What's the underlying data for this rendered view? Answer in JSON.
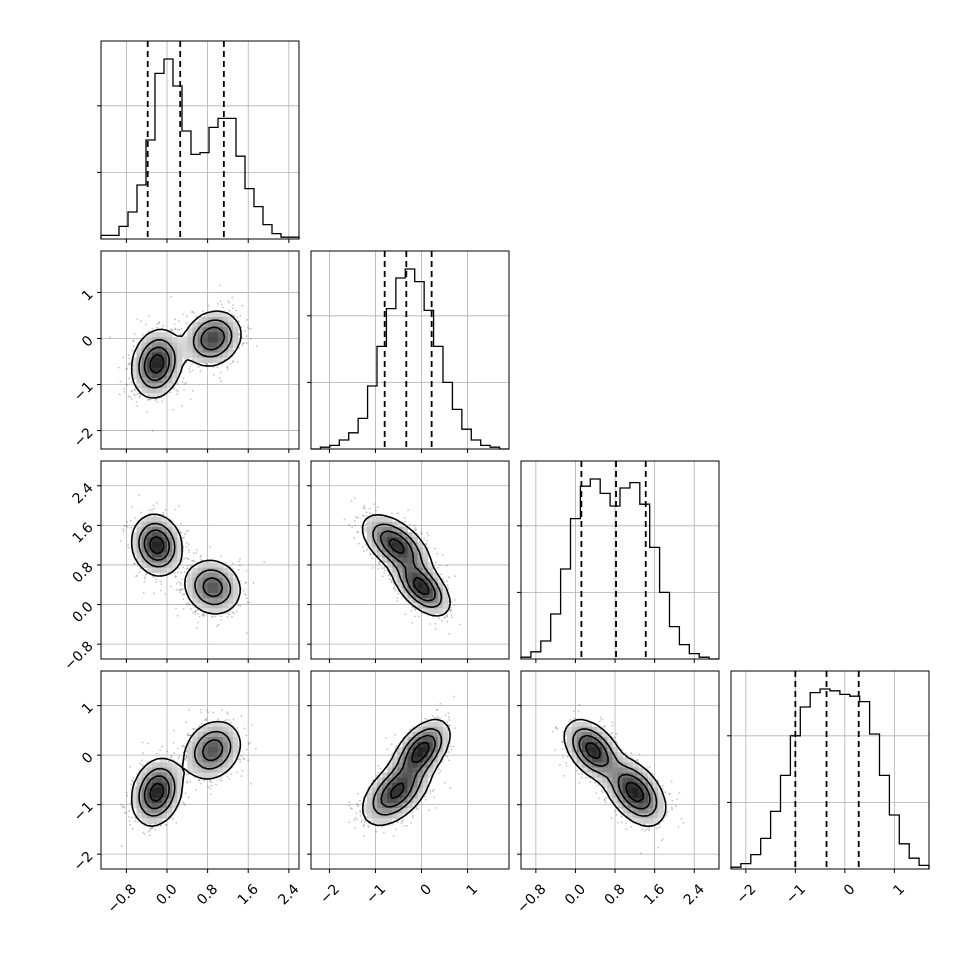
{
  "chart_data": {
    "type": "corner",
    "parameters": 4,
    "axes": [
      {
        "index": 0,
        "lim": [
          -1.3,
          2.6
        ],
        "ticks": [
          -0.8,
          0.0,
          0.8,
          1.6,
          2.4
        ],
        "tick_labels": [
          "−0.8",
          "0.0",
          "0.8",
          "1.6",
          "2.4"
        ],
        "quantiles": [
          -0.38,
          0.26,
          1.12
        ]
      },
      {
        "index": 1,
        "lim": [
          -2.4,
          1.9
        ],
        "ticks": [
          -2,
          -1,
          0,
          1
        ],
        "tick_labels": [
          "−2",
          "−1",
          "0",
          "1"
        ],
        "quantiles": [
          -0.8,
          -0.33,
          0.22
        ]
      },
      {
        "index": 2,
        "lim": [
          -1.1,
          2.9
        ],
        "ticks": [
          -0.8,
          0.0,
          0.8,
          1.6,
          2.4
        ],
        "tick_labels": [
          "−0.8",
          "0.0",
          "0.8",
          "1.6",
          "2.4"
        ],
        "quantiles": [
          0.12,
          0.82,
          1.42
        ]
      },
      {
        "index": 3,
        "lim": [
          -2.3,
          1.7
        ],
        "ticks": [
          -2,
          -1,
          0,
          1
        ],
        "tick_labels": [
          "−2",
          "−1",
          "0",
          "1"
        ],
        "quantiles": [
          -1.0,
          -0.37,
          0.28
        ]
      }
    ],
    "histograms": [
      {
        "param": 0,
        "bin_edges": [
          -1.3,
          2.6
        ],
        "counts": [
          0.02,
          0.02,
          0.07,
          0.15,
          0.3,
          0.55,
          0.92,
          1.0,
          0.85,
          0.6,
          0.47,
          0.48,
          0.62,
          0.67,
          0.67,
          0.46,
          0.28,
          0.18,
          0.08,
          0.03,
          0.01,
          0.01
        ]
      },
      {
        "param": 1,
        "bin_edges": [
          -2.4,
          1.9
        ],
        "counts": [
          0.0,
          0.01,
          0.02,
          0.05,
          0.09,
          0.17,
          0.35,
          0.57,
          0.78,
          0.95,
          1.0,
          0.93,
          0.77,
          0.57,
          0.37,
          0.22,
          0.11,
          0.05,
          0.02,
          0.01,
          0.0
        ]
      },
      {
        "param": 2,
        "bin_edges": [
          -1.1,
          2.9
        ],
        "counts": [
          0.01,
          0.04,
          0.1,
          0.25,
          0.5,
          0.78,
          0.96,
          1.0,
          0.92,
          0.85,
          0.95,
          0.98,
          0.86,
          0.62,
          0.37,
          0.18,
          0.08,
          0.03,
          0.01,
          0.0
        ]
      },
      {
        "param": 3,
        "bin_edges": [
          -2.3,
          1.7
        ],
        "counts": [
          0.01,
          0.03,
          0.08,
          0.17,
          0.32,
          0.52,
          0.74,
          0.9,
          0.98,
          1.0,
          0.99,
          0.97,
          0.96,
          0.93,
          0.75,
          0.52,
          0.3,
          0.14,
          0.06,
          0.02
        ]
      }
    ],
    "components": [
      {
        "mean": [
          -0.2,
          -0.55,
          1.2,
          -0.75
        ],
        "sd": [
          0.24,
          0.36,
          0.3,
          0.33
        ],
        "weight": 0.55
      },
      {
        "mean": [
          0.9,
          0.0,
          0.35,
          0.1
        ],
        "sd": [
          0.28,
          0.3,
          0.28,
          0.3
        ],
        "weight": 0.45
      }
    ],
    "pair_correlation_within_component": {
      "1_0": 0.15,
      "2_0": -0.1,
      "2_1": -0.55,
      "3_0": 0.2,
      "3_1": 0.5,
      "3_2": -0.45
    },
    "grid": true,
    "contour_levels": 4
  }
}
